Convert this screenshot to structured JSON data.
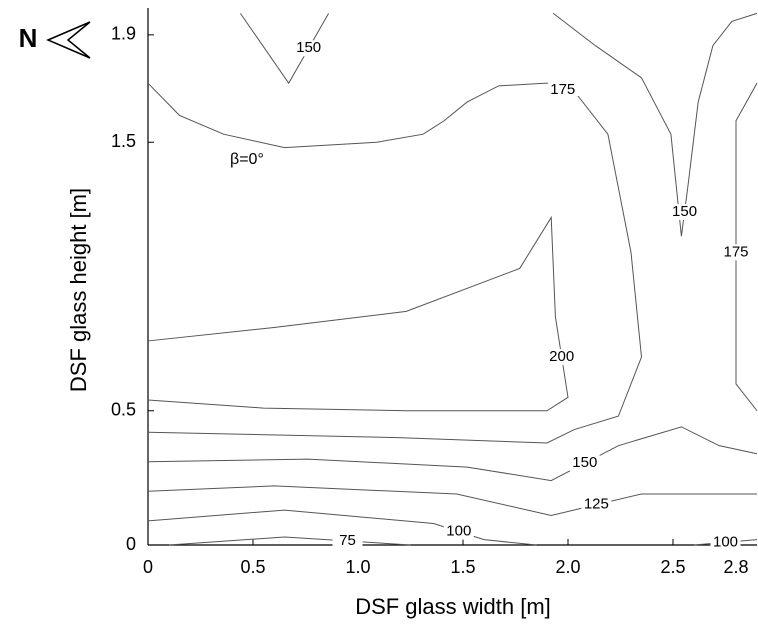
{
  "chart_data": {
    "type": "contour",
    "xlabel": "DSF glass width [m]",
    "ylabel": "DSF glass height [m]",
    "annotation": "β=0°",
    "north": "N",
    "xlim": [
      0,
      2.9
    ],
    "ylim": [
      0,
      2.0
    ],
    "xticks": [
      0,
      0.5,
      {
        "value": 1,
        "label": "1.0"
      },
      1.5,
      {
        "value": 2,
        "label": "2.0"
      },
      2.5,
      2.8
    ],
    "yticks": [
      0,
      0.5,
      1.5,
      1.9
    ],
    "contours": [
      {
        "level": 150,
        "x": [
          0.44,
          0.67,
          0.86
        ],
        "y": [
          1.98,
          1.72,
          1.98
        ]
      },
      {
        "level": 150,
        "x": [
          1.93,
          2.13,
          2.35,
          2.49,
          2.54,
          2.57,
          2.62,
          2.69,
          2.78,
          2.9
        ],
        "y": [
          1.98,
          1.86,
          1.74,
          1.53,
          1.15,
          1.33,
          1.65,
          1.86,
          1.95,
          1.98
        ]
      },
      {
        "level": 175,
        "x": [
          0,
          0.15,
          0.36,
          0.65,
          1.09,
          1.31,
          1.41,
          1.52,
          1.67,
          1.9,
          2.05,
          2.19,
          2.3,
          2.35,
          2.24,
          2.03,
          1.9,
          1.19,
          0
        ],
        "y": [
          1.72,
          1.6,
          1.53,
          1.48,
          1.5,
          1.53,
          1.58,
          1.65,
          1.71,
          1.72,
          1.67,
          1.53,
          1.09,
          0.7,
          0.48,
          0.43,
          0.38,
          0.4,
          0.42
        ]
      },
      {
        "level": 175,
        "x": [
          2.9,
          2.8,
          2.8,
          2.9
        ],
        "y": [
          1.72,
          1.58,
          0.6,
          0.5
        ]
      },
      {
        "level": 200,
        "x": [
          0,
          0.6,
          1.23,
          1.77,
          1.92,
          1.94,
          2.0,
          1.9,
          1.23,
          0.55,
          0
        ],
        "y": [
          0.76,
          0.81,
          0.87,
          1.03,
          1.22,
          0.85,
          0.55,
          0.5,
          0.5,
          0.51,
          0.54
        ]
      },
      {
        "level": 150,
        "x": [
          0,
          0.76,
          1.52,
          1.92,
          2.24,
          2.54,
          2.72,
          2.9
        ],
        "y": [
          0.31,
          0.32,
          0.29,
          0.24,
          0.37,
          0.44,
          0.37,
          0.34
        ]
      },
      {
        "level": 125,
        "x": [
          0,
          0.6,
          1.47,
          1.92,
          2.35,
          2.57,
          2.9
        ],
        "y": [
          0.2,
          0.22,
          0.19,
          0.11,
          0.19,
          0.19,
          0.19
        ]
      },
      {
        "level": 100,
        "x": [
          0,
          0.65,
          1.36,
          1.6,
          1.85
        ],
        "y": [
          0.09,
          0.13,
          0.08,
          0.02,
          0
        ]
      },
      {
        "level": 100,
        "x": [
          2.6,
          2.9
        ],
        "y": [
          0,
          0.02
        ]
      },
      {
        "level": 75,
        "x": [
          0.1,
          0.65,
          1.25
        ],
        "y": [
          0,
          0.03,
          0
        ]
      }
    ]
  }
}
